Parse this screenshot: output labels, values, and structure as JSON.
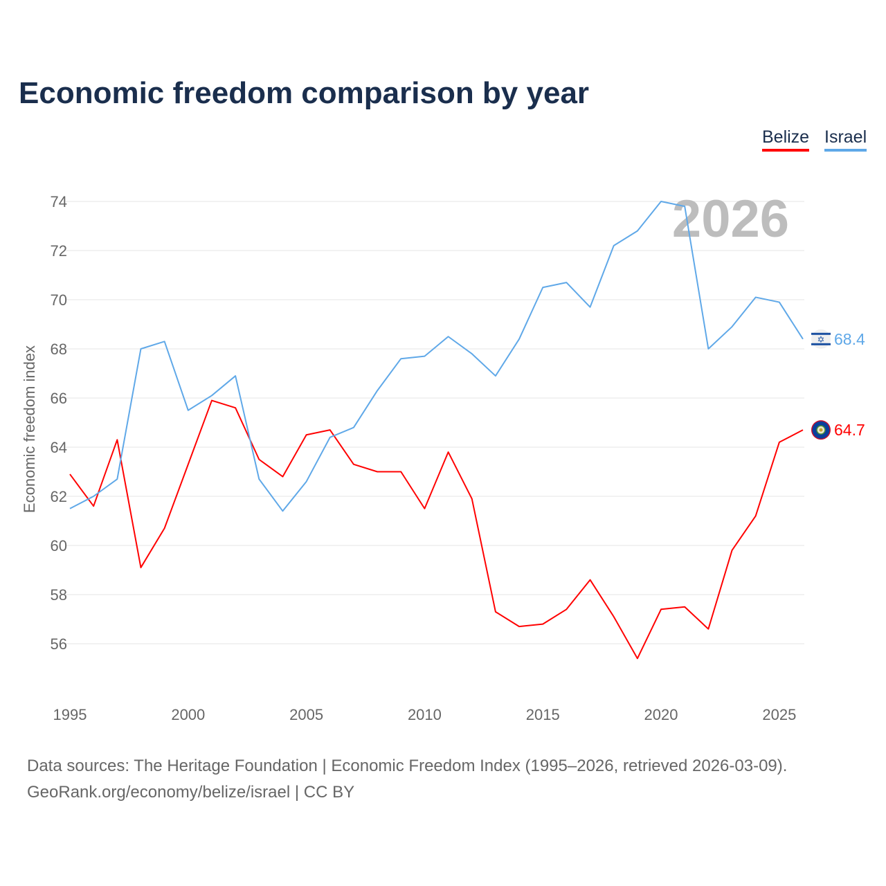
{
  "chart_data": {
    "type": "line",
    "title": "Economic freedom comparison by year",
    "xlabel": "",
    "ylabel": "Economic freedom index",
    "watermark_year": "2026",
    "x": [
      1995,
      1996,
      1997,
      1998,
      1999,
      2000,
      2001,
      2002,
      2003,
      2004,
      2005,
      2006,
      2007,
      2008,
      2009,
      2010,
      2011,
      2012,
      2013,
      2014,
      2015,
      2016,
      2017,
      2018,
      2019,
      2020,
      2021,
      2022,
      2023,
      2024,
      2025,
      2026
    ],
    "xlim": [
      1995,
      2026
    ],
    "ylim": [
      54,
      75
    ],
    "xticks": [
      "1995",
      "2000",
      "2005",
      "2010",
      "2015",
      "2020",
      "2025"
    ],
    "yticks": [
      "56",
      "58",
      "60",
      "62",
      "64",
      "66",
      "68",
      "70",
      "72",
      "74"
    ],
    "grid": true,
    "legend_position": "top-right",
    "series": [
      {
        "name": "Belize",
        "color": "#ff0000",
        "end_label": "64.7",
        "values": [
          62.9,
          61.6,
          64.3,
          59.1,
          60.7,
          63.3,
          65.9,
          65.6,
          63.5,
          62.8,
          64.5,
          64.7,
          63.3,
          63.0,
          63.0,
          61.5,
          63.8,
          61.9,
          57.3,
          56.7,
          56.8,
          57.4,
          58.6,
          57.1,
          55.4,
          57.4,
          57.5,
          56.6,
          59.8,
          61.2,
          64.2,
          64.7
        ]
      },
      {
        "name": "Israel",
        "color": "#5fa8e8",
        "end_label": "68.4",
        "values": [
          61.5,
          62.0,
          62.7,
          68.0,
          68.3,
          65.5,
          66.1,
          66.9,
          62.7,
          61.4,
          62.6,
          64.4,
          64.8,
          66.3,
          67.6,
          67.7,
          68.5,
          67.8,
          66.9,
          68.4,
          70.5,
          70.7,
          69.7,
          72.2,
          72.8,
          74.0,
          73.8,
          68.0,
          68.9,
          70.1,
          69.9,
          68.4
        ]
      }
    ]
  },
  "footer": {
    "line1": "Data sources: The Heritage Foundation | Economic Freedom Index (1995–2026, retrieved 2026-03-09).",
    "line2": "GeoRank.org/economy/belize/israel | CC BY"
  }
}
